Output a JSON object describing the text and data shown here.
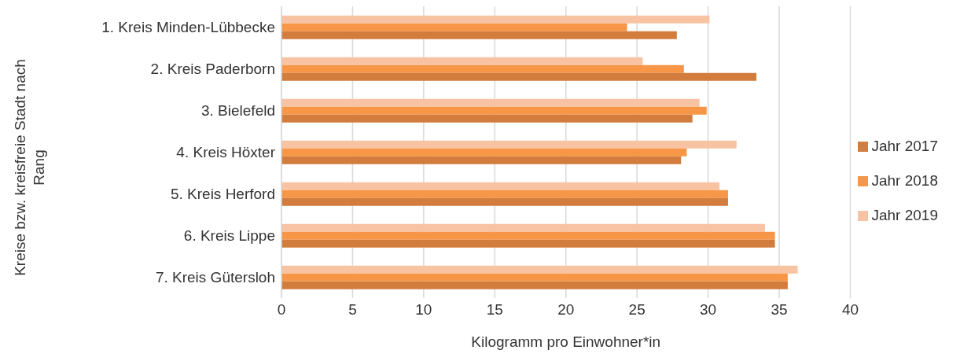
{
  "chart_data": {
    "type": "bar",
    "orientation": "horizontal",
    "xlabel": "Kilogramm pro Einwohner*in",
    "ylabel": "Kreise bzw. kreisfreie Stadt nach Rang",
    "categories": [
      "1. Kreis Minden-Lübbecke",
      "2. Kreis Paderborn",
      "3. Bielefeld",
      "4. Kreis Höxter",
      "5. Kreis Herford",
      "6. Kreis Lippe",
      "7. Kreis Gütersloh"
    ],
    "series": [
      {
        "name": "Jahr 2019",
        "color": "#f8c3a3",
        "values": [
          30.1,
          25.4,
          29.4,
          32.0,
          30.8,
          34.0,
          36.3
        ]
      },
      {
        "name": "Jahr 2018",
        "color": "#f79646",
        "values": [
          24.3,
          28.3,
          29.9,
          28.5,
          31.4,
          34.7,
          35.6
        ]
      },
      {
        "name": "Jahr 2017",
        "color": "#d27d3e",
        "values": [
          27.8,
          33.4,
          28.9,
          28.1,
          31.4,
          34.7,
          35.6
        ]
      }
    ],
    "xlim": [
      0,
      40
    ],
    "xticks": [
      0,
      5,
      10,
      15,
      20,
      25,
      30,
      35,
      40
    ],
    "grid": "x",
    "legend": "right"
  }
}
